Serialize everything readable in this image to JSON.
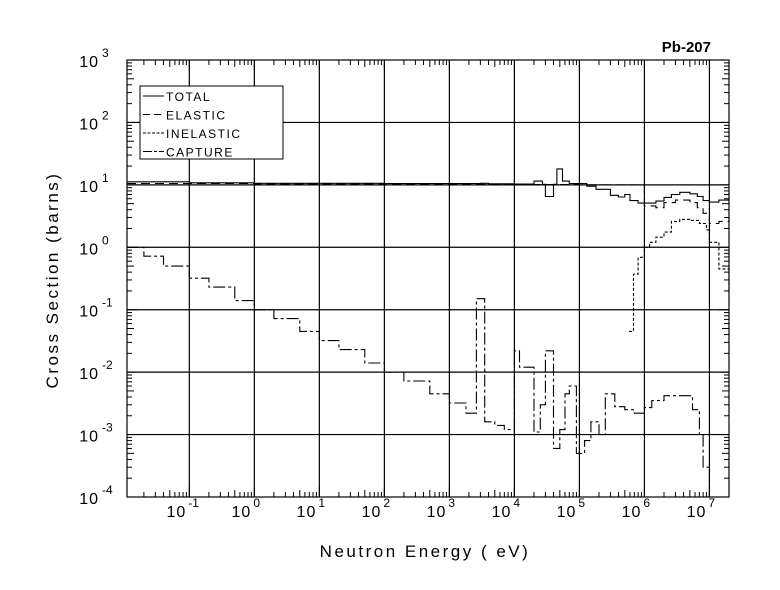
{
  "chart_data": {
    "type": "line",
    "title": "Pb-207",
    "xlabel": "Neutron Energy ( eV)",
    "ylabel": "Cross Section (barns)",
    "xscale": "log",
    "yscale": "log",
    "xlim": [
      0.011,
      20000000
    ],
    "ylim": [
      0.0001,
      1000
    ],
    "x_tick_labels": [
      {
        "base": "10",
        "exp": "-1",
        "value": 0.1
      },
      {
        "base": "10",
        "exp": "0",
        "value": 1
      },
      {
        "base": "10",
        "exp": "1",
        "value": 10
      },
      {
        "base": "10",
        "exp": "2",
        "value": 100
      },
      {
        "base": "10",
        "exp": "3",
        "value": 1000
      },
      {
        "base": "10",
        "exp": "4",
        "value": 10000
      },
      {
        "base": "10",
        "exp": "5",
        "value": 100000
      },
      {
        "base": "10",
        "exp": "6",
        "value": 1000000
      },
      {
        "base": "10",
        "exp": "7",
        "value": 10000000
      }
    ],
    "y_tick_labels": [
      {
        "base": "10",
        "exp": "3",
        "value": 1000
      },
      {
        "base": "10",
        "exp": "2",
        "value": 100
      },
      {
        "base": "10",
        "exp": "1",
        "value": 10
      },
      {
        "base": "10",
        "exp": "0",
        "value": 1
      },
      {
        "base": "10",
        "exp": "-1",
        "value": 0.1
      },
      {
        "base": "10",
        "exp": "-2",
        "value": 0.01
      },
      {
        "base": "10",
        "exp": "-3",
        "value": 0.001
      },
      {
        "base": "10",
        "exp": "-4",
        "value": 0.0001
      }
    ],
    "grid": true,
    "legend_position": "top-left",
    "series": [
      {
        "name": "TOTAL",
        "style": "solid",
        "points": [
          [
            0.011,
            11.2
          ],
          [
            0.1,
            10.8
          ],
          [
            1,
            10.6
          ],
          [
            100,
            10.5
          ],
          [
            3000,
            10.6
          ],
          [
            4000,
            10.4
          ],
          [
            10000,
            10.3
          ],
          [
            15000,
            10.3
          ],
          [
            20000,
            11.5
          ],
          [
            27000,
            10.2
          ],
          [
            30000,
            6.5
          ],
          [
            40000,
            10.2
          ],
          [
            45000,
            18
          ],
          [
            55000,
            11.5
          ],
          [
            70000,
            10.5
          ],
          [
            100000,
            10.5
          ],
          [
            130000,
            9.5
          ],
          [
            180000,
            8.5
          ],
          [
            250000,
            8.5
          ],
          [
            300000,
            6.8
          ],
          [
            400000,
            6.4
          ],
          [
            500000,
            7
          ],
          [
            600000,
            5.6
          ],
          [
            800000,
            5.1
          ],
          [
            1100000,
            5.1
          ],
          [
            1500000,
            5.5
          ],
          [
            2000000,
            6.3
          ],
          [
            2600000,
            7
          ],
          [
            3500000,
            7.6
          ],
          [
            5000000,
            7.2
          ],
          [
            6500000,
            6.5
          ],
          [
            8000000,
            5.6
          ],
          [
            10000000,
            5.3
          ],
          [
            14000000,
            5.7
          ],
          [
            20000000,
            5.9
          ]
        ]
      },
      {
        "name": "ELASTIC",
        "style": "dashed",
        "points": [
          [
            0.011,
            10.5
          ],
          [
            1,
            10.3
          ],
          [
            100,
            10.2
          ],
          [
            1000,
            10.2
          ],
          [
            10000,
            10.1
          ],
          [
            100000,
            10
          ],
          [
            1000000,
            4.6
          ],
          [
            1500000,
            4.3
          ],
          [
            2000000,
            5.2
          ],
          [
            3000000,
            5.7
          ],
          [
            5000000,
            5.2
          ],
          [
            6500000,
            4.3
          ],
          [
            8000000,
            3.5
          ],
          [
            10000000,
            2.4
          ],
          [
            14000000,
            2.6
          ],
          [
            20000000,
            3
          ]
        ]
      },
      {
        "name": "INELASTIC",
        "style": "dotted",
        "points": [
          [
            580000,
            0.045
          ],
          [
            680000,
            0.37
          ],
          [
            800000,
            0.69
          ],
          [
            1000000,
            1
          ],
          [
            1200000,
            1.2
          ],
          [
            1500000,
            1.45
          ],
          [
            2000000,
            1.75
          ],
          [
            2600000,
            2.6
          ],
          [
            3500000,
            2.8
          ],
          [
            5000000,
            2.7
          ],
          [
            7000000,
            2.4
          ],
          [
            9000000,
            1.9
          ],
          [
            10000000,
            1.2
          ],
          [
            14000000,
            0.45
          ],
          [
            20000000,
            0.2
          ]
        ]
      },
      {
        "name": "CAPTURE",
        "style": "dashdot",
        "points": [
          [
            0.011,
            1
          ],
          [
            0.02,
            0.72
          ],
          [
            0.04,
            0.5
          ],
          [
            0.1,
            0.32
          ],
          [
            0.2,
            0.23
          ],
          [
            0.5,
            0.14
          ],
          [
            1,
            0.1
          ],
          [
            2,
            0.072
          ],
          [
            5,
            0.045
          ],
          [
            10,
            0.032
          ],
          [
            20,
            0.023
          ],
          [
            50,
            0.014
          ],
          [
            100,
            0.01
          ],
          [
            200,
            0.0072
          ],
          [
            500,
            0.0045
          ],
          [
            1000,
            0.0032
          ],
          [
            1800,
            0.0022
          ],
          [
            2600,
            0.15
          ],
          [
            3500,
            0.0016
          ],
          [
            5000,
            0.0014
          ],
          [
            7000,
            0.0012
          ],
          [
            10000,
            0.022
          ],
          [
            12000,
            0.012
          ],
          [
            17000,
            0.012
          ],
          [
            20000,
            0.0011
          ],
          [
            25000,
            0.003
          ],
          [
            30000,
            0.022
          ],
          [
            40000,
            0.0006
          ],
          [
            50000,
            0.0012
          ],
          [
            60000,
            0.0045
          ],
          [
            70000,
            0.006
          ],
          [
            90000,
            0.0005
          ],
          [
            120000,
            0.0008
          ],
          [
            150000,
            0.0016
          ],
          [
            200000,
            0.001
          ],
          [
            250000,
            0.0045
          ],
          [
            350000,
            0.0028
          ],
          [
            500000,
            0.0025
          ],
          [
            700000,
            0.0022
          ],
          [
            1000000,
            0.0027
          ],
          [
            1300000,
            0.0035
          ],
          [
            2000000,
            0.0042
          ],
          [
            4000000,
            0.0042
          ],
          [
            5500000,
            0.0025
          ],
          [
            7000000,
            0.001
          ],
          [
            8000000,
            0.0003
          ],
          [
            10000000,
            0.0001
          ]
        ]
      }
    ]
  }
}
